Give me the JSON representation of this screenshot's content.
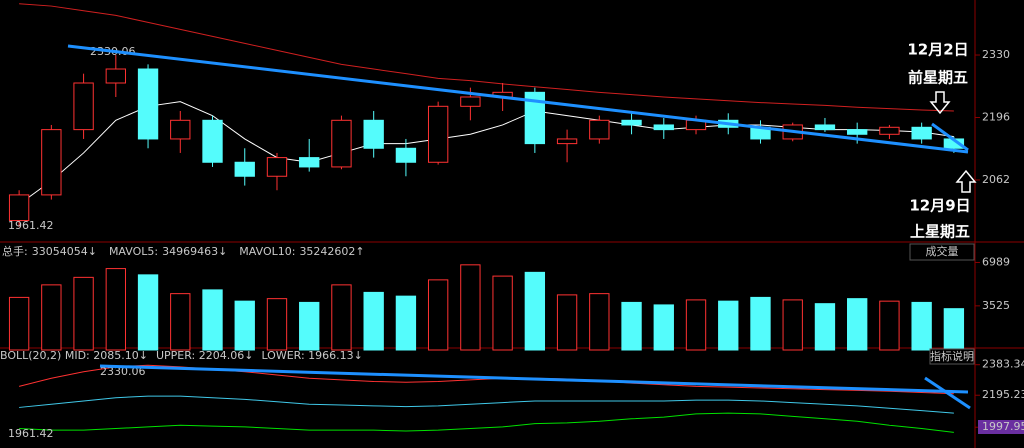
{
  "chart_data": [
    {
      "type": "candlestick",
      "up_color": "#ff3232",
      "down_color": "#54fcfc",
      "ylim": [
        1929,
        2448
      ],
      "yticks": [
        2062,
        2196,
        2330
      ],
      "candles": [
        [
          1975,
          2040,
          1961.42,
          2030
        ],
        [
          2030,
          2180,
          2020,
          2170
        ],
        [
          2170,
          2290,
          2150,
          2270
        ],
        [
          2270,
          2330.06,
          2240,
          2300
        ],
        [
          2300,
          2310,
          2130,
          2150
        ],
        [
          2150,
          2210,
          2120,
          2190
        ],
        [
          2190,
          2200,
          2090,
          2100
        ],
        [
          2100,
          2130,
          2050,
          2070
        ],
        [
          2070,
          2120,
          2040,
          2110
        ],
        [
          2110,
          2150,
          2080,
          2090
        ],
        [
          2090,
          2200,
          2085,
          2190
        ],
        [
          2190,
          2210,
          2110,
          2130
        ],
        [
          2130,
          2150,
          2070,
          2100
        ],
        [
          2100,
          2230,
          2095,
          2220
        ],
        [
          2220,
          2260,
          2190,
          2240
        ],
        [
          2240,
          2270,
          2210,
          2250
        ],
        [
          2250,
          2260,
          2120,
          2140
        ],
        [
          2140,
          2170,
          2100,
          2150
        ],
        [
          2150,
          2200,
          2140,
          2190
        ],
        [
          2190,
          2210,
          2160,
          2180
        ],
        [
          2180,
          2195,
          2150,
          2170
        ],
        [
          2170,
          2200,
          2160,
          2190
        ],
        [
          2190,
          2205,
          2160,
          2175
        ],
        [
          2175,
          2190,
          2140,
          2150
        ],
        [
          2150,
          2185,
          2145,
          2180
        ],
        [
          2180,
          2195,
          2165,
          2170
        ],
        [
          2170,
          2185,
          2140,
          2160
        ],
        [
          2160,
          2180,
          2150,
          2175
        ],
        [
          2175,
          2185,
          2140,
          2150
        ],
        [
          2150,
          2155,
          2120,
          2130
        ]
      ],
      "lines": [
        {
          "color": "#ffffff",
          "values": [
            2010,
            2060,
            2120,
            2190,
            2220,
            2230,
            2200,
            2150,
            2110,
            2100,
            2120,
            2140,
            2140,
            2150,
            2160,
            2180,
            2210,
            2200,
            2190,
            2180,
            2170,
            2175,
            2180,
            2180,
            2175,
            2170,
            2170,
            2168,
            2165,
            2155
          ]
        },
        {
          "color": "#d02020",
          "values": [
            2440,
            2435,
            2425,
            2415,
            2400,
            2385,
            2370,
            2355,
            2340,
            2325,
            2310,
            2300,
            2290,
            2280,
            2275,
            2268,
            2262,
            2256,
            2250,
            2245,
            2240,
            2236,
            2232,
            2228,
            2225,
            2222,
            2218,
            2215,
            2212,
            2210
          ]
        }
      ],
      "annotations": [
        "2330.06",
        "1961.42",
        "12月2日",
        "前星期五",
        "12月9日",
        "上星期五"
      ]
    },
    {
      "type": "bar",
      "ylim": [
        0,
        8144
      ],
      "yticks": [
        3525,
        6989
      ],
      "header": [
        {
          "label": "总手:",
          "value": "33054054↓",
          "color": "#ff3232"
        },
        {
          "label": "MAVOL5:",
          "value": "34969463↓",
          "color": "#ffff00"
        },
        {
          "label": "MAVOL10:",
          "value": "35242602↑",
          "color": "#ffffff"
        }
      ],
      "indicator": "成交量",
      "values": [
        4200,
        5200,
        5800,
        6500,
        6000,
        4500,
        4800,
        3900,
        4100,
        3800,
        5200,
        4600,
        4300,
        5600,
        6800,
        5900,
        6200,
        4400,
        4500,
        3800,
        3600,
        4000,
        3900,
        4200,
        4000,
        3700,
        4100,
        3900,
        3800,
        3300
      ]
    },
    {
      "type": "line",
      "ylim": [
        1870,
        2474
      ],
      "yticks": [
        1997.95,
        2195.23,
        2383.34
      ],
      "header": [
        {
          "text": "BOLL(20,2) MID: 2085.10↓",
          "color": "#c0c0c0"
        },
        {
          "text": "UPPER: 2204.06↓",
          "color": "#ff3232"
        },
        {
          "text": "LOWER: 1966.13↓",
          "color": "#00e000"
        }
      ],
      "indicator": "指标说明",
      "series": [
        {
          "color": "#ff3232",
          "values": [
            2250,
            2300,
            2340,
            2370,
            2380,
            2370,
            2355,
            2340,
            2320,
            2300,
            2290,
            2280,
            2275,
            2280,
            2290,
            2300,
            2300,
            2295,
            2285,
            2270,
            2260,
            2250,
            2245,
            2240,
            2235,
            2230,
            2225,
            2220,
            2212,
            2204.06
          ]
        },
        {
          "color": "#40c8e8",
          "values": [
            2120,
            2140,
            2160,
            2180,
            2190,
            2190,
            2180,
            2170,
            2155,
            2140,
            2135,
            2130,
            2125,
            2130,
            2140,
            2150,
            2160,
            2160,
            2160,
            2160,
            2160,
            2165,
            2165,
            2160,
            2150,
            2140,
            2130,
            2115,
            2100,
            2085.1
          ]
        },
        {
          "color": "#00e000",
          "values": [
            1990,
            1980,
            1980,
            1990,
            2000,
            2010,
            2005,
            2000,
            1990,
            1980,
            1980,
            1980,
            1975,
            1980,
            1990,
            2000,
            2020,
            2025,
            2035,
            2050,
            2060,
            2080,
            2085,
            2080,
            2065,
            2050,
            2035,
            2010,
            1990,
            1966.13
          ]
        }
      ],
      "annotations": [
        "2330.06",
        "1961.42"
      ]
    }
  ]
}
